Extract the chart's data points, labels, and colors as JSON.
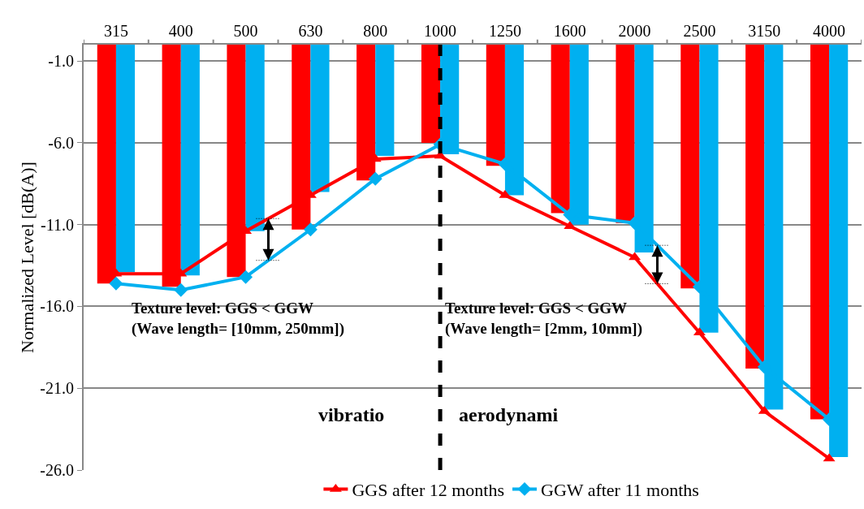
{
  "chart_data": {
    "type": "bar",
    "ylabel": "Normalized Level [dB(A)]",
    "categories": [
      "315",
      "400",
      "500",
      "630",
      "800",
      "1000",
      "1250",
      "1600",
      "2000",
      "2500",
      "3150",
      "4000"
    ],
    "series": [
      {
        "color": "#ff0000",
        "values": [
          -14.6,
          -14.8,
          -14.2,
          -11.3,
          -8.3,
          -6.0,
          -7.4,
          -10.3,
          -10.9,
          -14.9,
          -19.8,
          -22.9
        ]
      },
      {
        "color": "#00b0f0",
        "values": [
          -13.9,
          -14.1,
          -11.4,
          -9.0,
          -6.8,
          -6.7,
          -9.2,
          -11.0,
          -12.7,
          -17.6,
          -22.3,
          -25.2
        ]
      },
      {
        "type": "line",
        "name": "GGS after 12 months",
        "color": "#ff0000",
        "marker": "triangle",
        "values": [
          -14.0,
          -14.0,
          -11.4,
          -9.2,
          -7.0,
          -6.8,
          -9.2,
          -11.1,
          -13.0,
          -17.6,
          -22.4,
          -25.3
        ]
      },
      {
        "type": "line",
        "name": "GGW after 11 months",
        "color": "#00b0f0",
        "marker": "diamond",
        "values": [
          -14.6,
          -15.0,
          -14.2,
          -11.3,
          -8.2,
          -6.1,
          -7.3,
          -10.4,
          -10.9,
          -14.8,
          -19.7,
          -22.9
        ]
      }
    ],
    "ylim": [
      -26,
      0
    ],
    "yticks": [
      {
        "value": -1,
        "label": "-1.0"
      },
      {
        "value": -6,
        "label": "-6.0"
      },
      {
        "value": -11,
        "label": "-11.0"
      },
      {
        "value": -16,
        "label": "-16.0"
      },
      {
        "value": -21,
        "label": "-21.0"
      },
      {
        "value": -26,
        "label": "-26.0"
      }
    ],
    "grid": "y",
    "legend": "bottom",
    "ref_lines": [
      {
        "axis": "x",
        "value": "1000",
        "line_style": "dashed",
        "color": "#000000"
      }
    ],
    "annotations": [
      "Texture level: GGS < GGW\n(Wave length= [10mm, 250mm])",
      "Texture level: GGS < GGW\n(Wave length= [2mm, 10mm])",
      "vibratio",
      "aerodynami"
    ]
  }
}
